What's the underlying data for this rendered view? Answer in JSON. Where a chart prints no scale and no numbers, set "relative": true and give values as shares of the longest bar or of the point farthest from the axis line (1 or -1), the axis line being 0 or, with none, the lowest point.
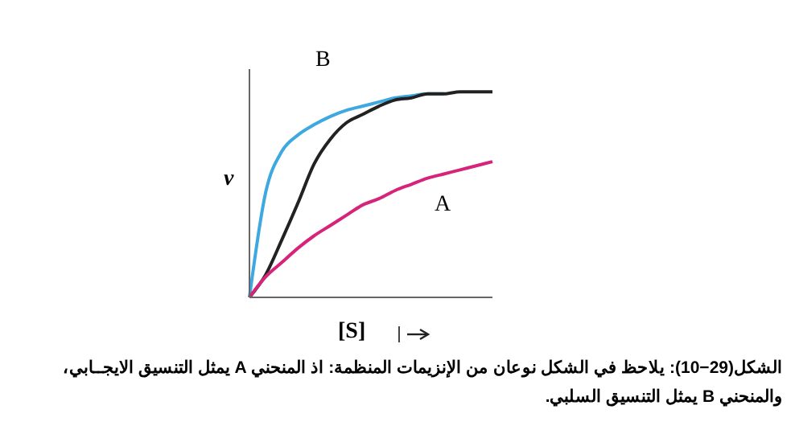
{
  "chart_data": {
    "type": "line",
    "relative": true,
    "xlabel": "[S]",
    "ylabel": "v",
    "categories": [
      null,
      null,
      null,
      null,
      null,
      null,
      null,
      null,
      null,
      null,
      null,
      null,
      null,
      null,
      null,
      null
    ],
    "marker": "none",
    "series": [
      {
        "color": "#3ea8e0",
        "values": [
          0,
          0.51,
          0.71,
          0.79,
          0.84,
          0.88,
          0.91,
          0.93,
          0.95,
          0.97,
          0.98,
          0.99,
          0.99,
          null,
          null,
          null
        ]
      },
      {
        "color": "#222222",
        "values": [
          0,
          0.11,
          0.28,
          0.46,
          0.65,
          0.77,
          0.85,
          0.89,
          0.93,
          0.96,
          0.97,
          0.99,
          0.99,
          1.0,
          1.0,
          1.0
        ]
      },
      {
        "color": "#d6247a",
        "values": [
          0,
          0.1,
          0.17,
          0.24,
          0.3,
          0.35,
          0.4,
          0.45,
          0.48,
          0.52,
          0.55,
          0.58,
          0.6,
          0.62,
          0.64,
          0.66
        ]
      }
    ],
    "annotations": [
      "B",
      "A",
      "الشكل(29−10): يلاحظ في الشكل نوعان من الإنزيمات المنظمة: اذ المنحني A يمثل التنسيق الايجــابي، والمنحني B يمثل التنسيق السلبي."
    ]
  }
}
